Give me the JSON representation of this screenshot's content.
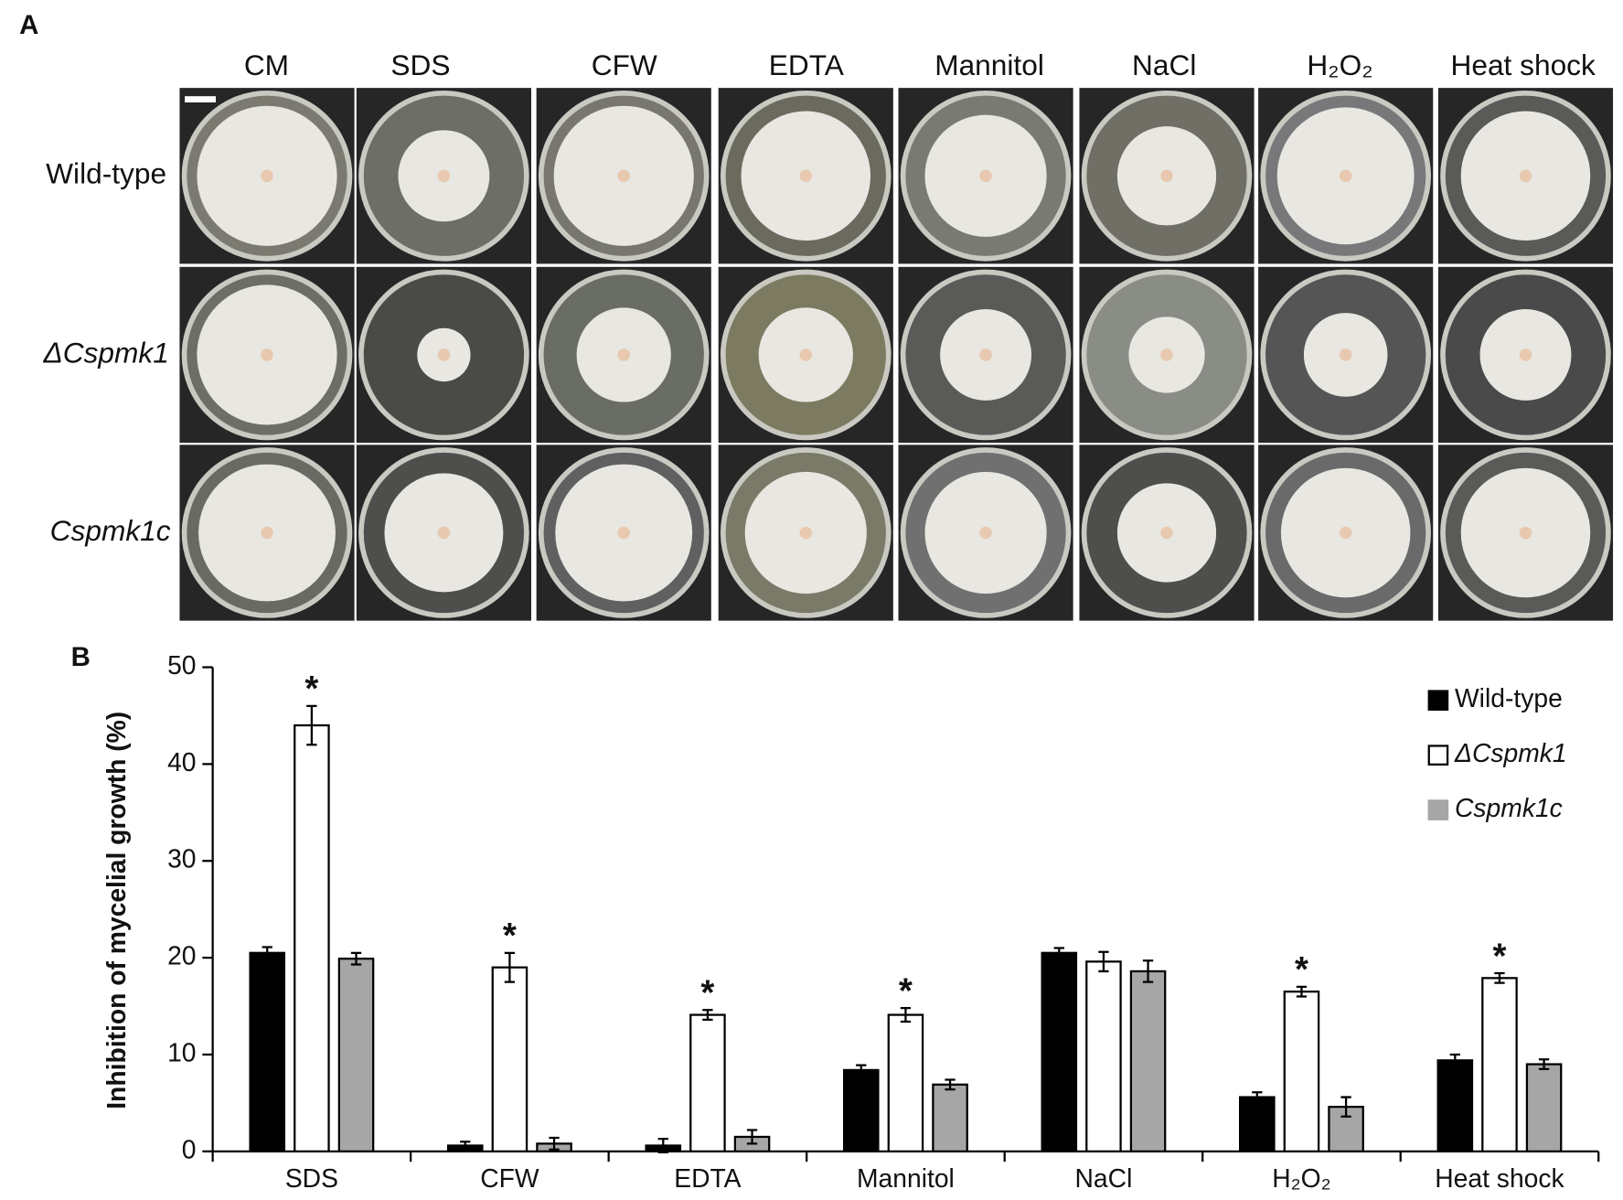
{
  "panel_a": {
    "label": "A",
    "columns": [
      "CM",
      "SDS",
      "CFW",
      "EDTA",
      "Mannitol",
      "NaCl",
      "H₂O₂",
      "Heat shock"
    ],
    "rows": [
      "Wild-type",
      "ΔCspmk1",
      "Cspmk1c"
    ]
  },
  "chart_data": {
    "type": "bar",
    "panel_label": "B",
    "y_label": "Inhibition of mycelial growth (%)",
    "categories": [
      "SDS",
      "CFW",
      "EDTA",
      "Mannitol",
      "NaCl",
      "H₂O₂",
      "Heat shock"
    ],
    "series": [
      {
        "name": "Wild-type",
        "color": "#000000",
        "values": [
          20.5,
          0.6,
          0.6,
          8.4,
          20.5,
          5.6,
          9.4
        ],
        "errors": [
          0.6,
          0.4,
          0.7,
          0.5,
          0.5,
          0.5,
          0.6
        ]
      },
      {
        "name": "ΔCspmk1",
        "color": "#ffffff",
        "values": [
          44,
          19,
          14.1,
          14.1,
          19.6,
          16.5,
          17.9
        ],
        "errors": [
          2,
          1.5,
          0.5,
          0.7,
          1,
          0.5,
          0.5
        ]
      },
      {
        "name": "Cspmk1c",
        "color": "#a6a6a6",
        "values": [
          19.9,
          0.8,
          1.5,
          6.9,
          18.6,
          4.6,
          9.0
        ],
        "errors": [
          0.6,
          0.6,
          0.7,
          0.5,
          1.1,
          1.0,
          0.5
        ]
      }
    ],
    "annotations": [
      {
        "text": "*",
        "category": "SDS",
        "series": "ΔCspmk1"
      },
      {
        "text": "*",
        "category": "CFW",
        "series": "ΔCspmk1"
      },
      {
        "text": "*",
        "category": "EDTA",
        "series": "ΔCspmk1"
      },
      {
        "text": "*",
        "category": "Mannitol",
        "series": "ΔCspmk1"
      },
      {
        "text": "*",
        "category": "H₂O₂",
        "series": "ΔCspmk1"
      },
      {
        "text": "*",
        "category": "Heat shock",
        "series": "ΔCspmk1"
      }
    ],
    "ylim": [
      0,
      50
    ],
    "yticks": [
      0,
      10,
      20,
      30,
      40,
      50
    ],
    "legend": "upper right"
  }
}
